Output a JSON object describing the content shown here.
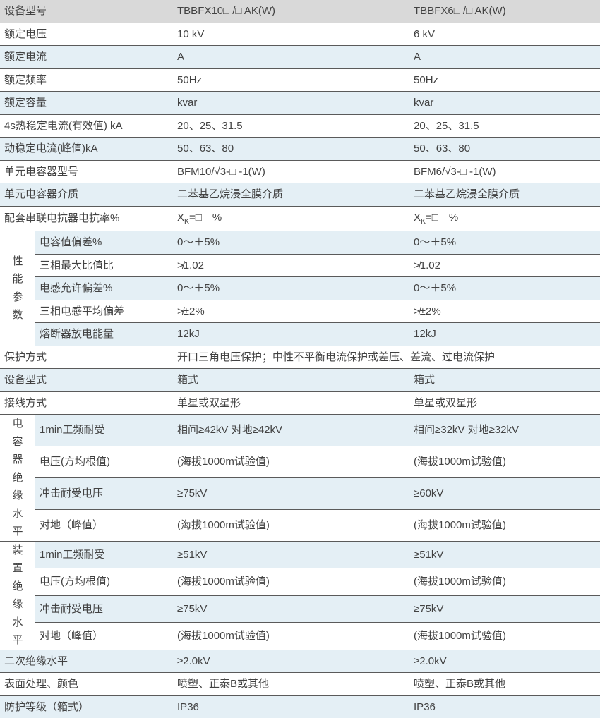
{
  "colors": {
    "header_bg": "#d9d9d9",
    "zebra_bg": "#e4eff5",
    "border": "#5a5a5a",
    "text": "#424242"
  },
  "header": {
    "c0": "设备型号",
    "c1": "TBBFX10□ /□ AK(W)",
    "c2": "TBBFX6□ /□ AK(W)"
  },
  "rows": {
    "rated_voltage": {
      "l": "额定电压",
      "v1": "10 kV",
      "v2": "6 kV"
    },
    "rated_current": {
      "l": "额定电流",
      "v1": "A",
      "v2": "A"
    },
    "rated_freq": {
      "l": "额定频率",
      "v1": "50Hz",
      "v2": "50Hz"
    },
    "rated_cap": {
      "l": "额定容量",
      "v1": "kvar",
      "v2": "kvar"
    },
    "thermal": {
      "l": "4s热稳定电流(有效值) kA",
      "v1": "20、25、31.5",
      "v2": "20、25、31.5"
    },
    "dynamic": {
      "l": "动稳定电流(峰值)kA",
      "v1": "50、63、80",
      "v2": "50、63、80"
    },
    "unit_cap": {
      "l": "单元电容器型号",
      "v1": "BFM10/√3-□ -1(W)",
      "v2": "BFM6/√3-□ -1(W)"
    },
    "unit_diel": {
      "l": "单元电容器介质",
      "v1": "二苯基乙烷浸全膜介质",
      "v2": "二苯基乙烷浸全膜介质"
    },
    "reactor": {
      "l": "配套串联电抗器电抗率%",
      "v1_pre": "X",
      "v1_sub": "K",
      "v1_post": "=□ %",
      "v2_pre": "X",
      "v2_sub": "K",
      "v2_post": "=□ %"
    }
  },
  "perf": {
    "group_label": "性能参数",
    "cap_dev": {
      "l": "电容值偏差%",
      "v1": "0～＋5%",
      "v2": "0～＋5%"
    },
    "three_max": {
      "l": "三相最大比值比",
      "v1": "≯1.02",
      "v2": "≯1.02"
    },
    "ind_dev": {
      "l": "电感允许偏差%",
      "v1": "0～＋5%",
      "v2": "0～＋5%"
    },
    "three_ind": {
      "l": "三相电感平均偏差",
      "v1": "≯±2%",
      "v2": "≯±2%"
    },
    "fuse": {
      "l": "熔断器放电能量",
      "v1": "12kJ",
      "v2": "12kJ"
    }
  },
  "protection": {
    "l": "保护方式",
    "v": "开口三角电压保护；中性不平衡电流保护或差压、差流、过电流保护"
  },
  "dev_type": {
    "l": "设备型式",
    "v1": "箱式",
    "v2": "箱式"
  },
  "wiring": {
    "l": "接线方式",
    "v1": "单星或双星形",
    "v2": "单星或双星形"
  },
  "cap_ins": {
    "group_label": "电容器绝缘水平",
    "r1": {
      "l": "1min工频耐受",
      "v1": "相间≥42kV  对地≥42kV",
      "v2": "相间≥32kV  对地≥32kV"
    },
    "r2": {
      "l": "电压(方均根值)",
      "v1": "(海拔1000m试验值)",
      "v2": "(海拔1000m试验值)"
    },
    "r3": {
      "l": "冲击耐受电压",
      "v1": "≥75kV",
      "v2": "≥60kV"
    },
    "r4": {
      "l": "对地（峰值）",
      "v1": "(海拔1000m试验值)",
      "v2": "(海拔1000m试验值)"
    }
  },
  "dev_ins": {
    "group_label": "装置绝缘水平",
    "r1": {
      "l": "1min工频耐受",
      "v1": "≥51kV",
      "v2": "≥51kV"
    },
    "r2": {
      "l": "电压(方均根值)",
      "v1": "(海拔1000m试验值)",
      "v2": "(海拔1000m试验值)"
    },
    "r3": {
      "l": "冲击耐受电压",
      "v1": "≥75kV",
      "v2": "≥75kV"
    },
    "r4": {
      "l": "对地（峰值）",
      "v1": "(海拔1000m试验值)",
      "v2": "(海拔1000m试验值)"
    }
  },
  "sec_ins": {
    "l": "二次绝缘水平",
    "v1": "≥2.0kV",
    "v2": "≥2.0kV"
  },
  "surface": {
    "l": "表面处理、颜色",
    "v1": "喷塑、正泰B或其他",
    "v2": "喷塑、正泰B或其他"
  },
  "ip": {
    "l": "防护等级（箱式）",
    "v1": "IP36",
    "v2": "IP36"
  }
}
